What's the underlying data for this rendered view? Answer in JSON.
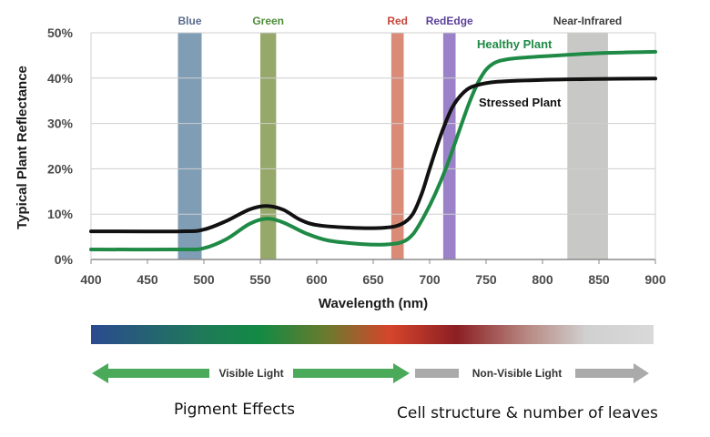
{
  "chart_data": {
    "type": "line",
    "xlabel": "Wavelength (nm)",
    "ylabel": "Typical Plant Reflectance",
    "xlim": [
      400,
      900
    ],
    "ylim": [
      0,
      50
    ],
    "x_ticks": [
      400,
      450,
      500,
      550,
      600,
      650,
      700,
      750,
      800,
      850,
      900
    ],
    "y_ticks": [
      "0%",
      "10%",
      "20%",
      "30%",
      "40%",
      "50%"
    ],
    "grid": "horizontal",
    "bands": [
      {
        "label": "Blue",
        "from": 477,
        "to": 498,
        "color": "#7f9db5",
        "label_color": "#5a6b8a"
      },
      {
        "label": "Green",
        "from": 550,
        "to": 564,
        "color": "#96a86a",
        "label_color": "#4e8d3a"
      },
      {
        "label": "Red",
        "from": 666,
        "to": 677,
        "color": "#d98b78",
        "label_color": "#c8463a"
      },
      {
        "label": "RedEdge",
        "from": 712,
        "to": 723,
        "color": "#9b82c8",
        "label_color": "#5b3f9a"
      },
      {
        "label": "Near-Infrared",
        "from": 822,
        "to": 858,
        "color": "#c8c8c6",
        "label_color": "#3a3a3a"
      }
    ],
    "series": [
      {
        "name": "Healthy Plant",
        "color": "#1e8a45",
        "x": [
          400,
          480,
          500,
          520,
          540,
          555,
          570,
          590,
          610,
          640,
          660,
          675,
          685,
          695,
          705,
          715,
          725,
          735,
          745,
          755,
          770,
          800,
          850,
          900
        ],
        "y": [
          2.2,
          2.2,
          2.5,
          4.5,
          7.8,
          9.0,
          8.2,
          5.8,
          4.2,
          3.4,
          3.3,
          3.8,
          5.5,
          9.5,
          14.5,
          20.5,
          27.5,
          34.5,
          40.0,
          43.0,
          44.2,
          44.8,
          45.5,
          45.8
        ]
      },
      {
        "name": "Stressed Plant",
        "color": "#111111",
        "x": [
          400,
          480,
          500,
          520,
          540,
          555,
          570,
          585,
          600,
          630,
          660,
          675,
          685,
          693,
          700,
          710,
          720,
          730,
          740,
          760,
          800,
          850,
          900
        ],
        "y": [
          6.2,
          6.2,
          6.6,
          8.5,
          11.0,
          11.8,
          11.0,
          8.8,
          7.6,
          7.0,
          7.0,
          7.8,
          10.0,
          14.5,
          20.0,
          27.5,
          33.5,
          36.8,
          38.3,
          39.2,
          39.6,
          39.8,
          39.9
        ]
      }
    ],
    "annotations": {
      "healthy_label": "Healthy Plant",
      "stressed_label": "Stressed Plant"
    }
  },
  "spectrum": {
    "colors": [
      "#2b4a8f",
      "#1f7a58",
      "#138a43",
      "#6b7a2e",
      "#d6452c",
      "#8c1f23",
      "#b98c86",
      "#d0d0d0",
      "#d9d9d9"
    ]
  },
  "arrows": {
    "visible_label": "Visible Light",
    "nonvisible_label": "Non-Visible Light",
    "visible_color": "#4aaa5a",
    "nonvisible_color": "#aaaaaa"
  },
  "captions": {
    "pigment": "Pigment Effects",
    "cell": "Cell structure & number of leaves"
  }
}
